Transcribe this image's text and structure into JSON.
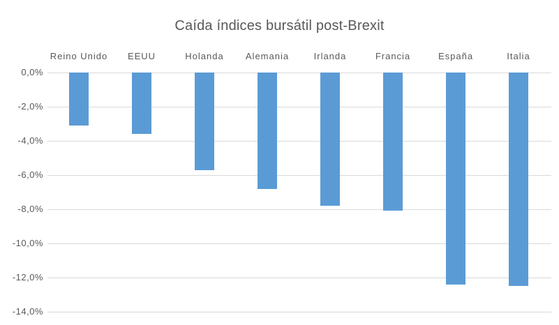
{
  "chart_data": {
    "type": "bar",
    "title": "Caída índices bursátil post-Brexit",
    "categories": [
      "Reino Unido",
      "EEUU",
      "Holanda",
      "Alemania",
      "Irlanda",
      "Francia",
      "España",
      "Italia"
    ],
    "values": [
      -3.1,
      -3.6,
      -5.7,
      -6.8,
      -7.8,
      -8.1,
      -12.4,
      -12.5
    ],
    "unit": "%",
    "xlabel": "",
    "ylabel": "",
    "ylim": [
      -14,
      0
    ],
    "ytick_step": 2,
    "ytick_labels": [
      "0,0%",
      "-2,0%",
      "-4,0%",
      "-6,0%",
      "-8,0%",
      "-10,0%",
      "-12,0%",
      "-14,0%"
    ],
    "grid": true,
    "legend": false,
    "category_label_position": "above-zero-line",
    "colors": {
      "bar": "#5B9BD5",
      "gridline": "#D9D9D9",
      "text": "#595959",
      "title": "#595959",
      "background": "#FFFFFF"
    }
  }
}
